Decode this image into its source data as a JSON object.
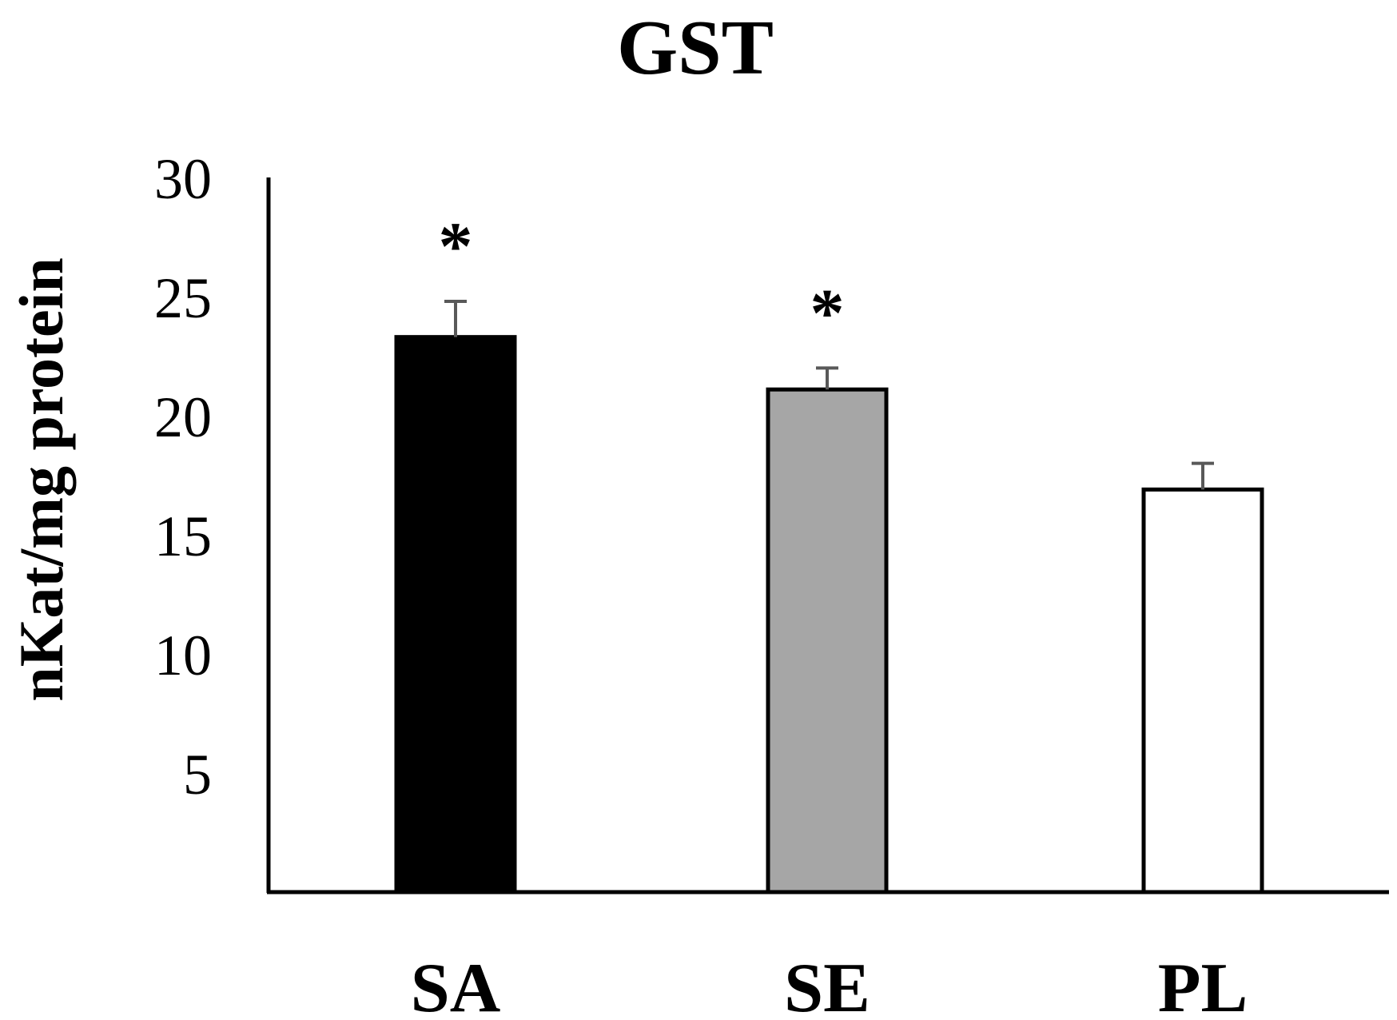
{
  "chart_data": {
    "type": "bar",
    "title": "GST",
    "xlabel": "",
    "ylabel": "nKat/mg protein",
    "categories": [
      "SA",
      "SE",
      "PL"
    ],
    "values": [
      23.3,
      21.1,
      16.9
    ],
    "errors": [
      1.5,
      0.9,
      1.1
    ],
    "significance": [
      "*",
      "*",
      ""
    ],
    "ylim": [
      0,
      30
    ],
    "yticks": [
      5,
      10,
      15,
      20,
      25,
      30
    ],
    "colors": {
      "SA": "#000000",
      "SE": "#a6a6a6",
      "PL": "#ffffff"
    },
    "error_bar_color": "#595959",
    "grid": false,
    "legend": "none"
  }
}
